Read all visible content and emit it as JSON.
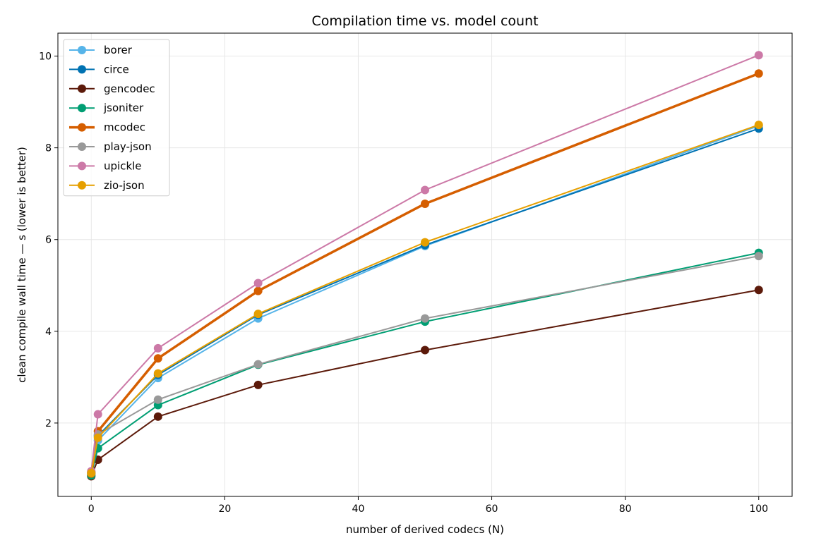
{
  "chart_data": {
    "type": "line",
    "title": "Compilation time vs. model count",
    "xlabel": "number of derived codecs (N)",
    "ylabel": "clean compile wall time — s (lower is better)",
    "xlim": [
      -5,
      105
    ],
    "ylim": [
      0.4,
      10.5
    ],
    "xticks": [
      0,
      20,
      40,
      60,
      80,
      100
    ],
    "yticks": [
      2,
      4,
      6,
      8,
      10
    ],
    "grid": true,
    "legend": "top-left",
    "x": [
      0,
      1,
      10,
      25,
      50,
      100
    ],
    "series": [
      {
        "name": "borer",
        "color": "#56b4e9",
        "width": 2,
        "values": [
          0.88,
          1.62,
          2.98,
          4.28,
          5.86,
          8.48
        ]
      },
      {
        "name": "circe",
        "color": "#0072b2",
        "width": 2,
        "values": [
          0.92,
          1.72,
          3.05,
          4.36,
          5.88,
          8.42
        ]
      },
      {
        "name": "gencodec",
        "color": "#5c1a0a",
        "width": 2,
        "values": [
          0.84,
          1.2,
          2.14,
          2.83,
          3.59,
          4.9
        ]
      },
      {
        "name": "jsoniter",
        "color": "#009e73",
        "width": 2,
        "values": [
          0.86,
          1.45,
          2.39,
          3.27,
          4.21,
          5.71
        ]
      },
      {
        "name": "mcodec",
        "color": "#d55e00",
        "width": 3.5,
        "values": [
          0.9,
          1.82,
          3.41,
          4.88,
          6.78,
          9.62
        ]
      },
      {
        "name": "play-json",
        "color": "#999999",
        "width": 2,
        "values": [
          0.93,
          1.75,
          2.51,
          3.28,
          4.28,
          5.64
        ]
      },
      {
        "name": "upickle",
        "color": "#cc79a7",
        "width": 2,
        "values": [
          0.95,
          2.19,
          3.63,
          5.05,
          7.08,
          10.02
        ]
      },
      {
        "name": "zio-json",
        "color": "#e69f00",
        "width": 2,
        "values": [
          0.91,
          1.68,
          3.08,
          4.38,
          5.94,
          8.5
        ]
      }
    ]
  }
}
